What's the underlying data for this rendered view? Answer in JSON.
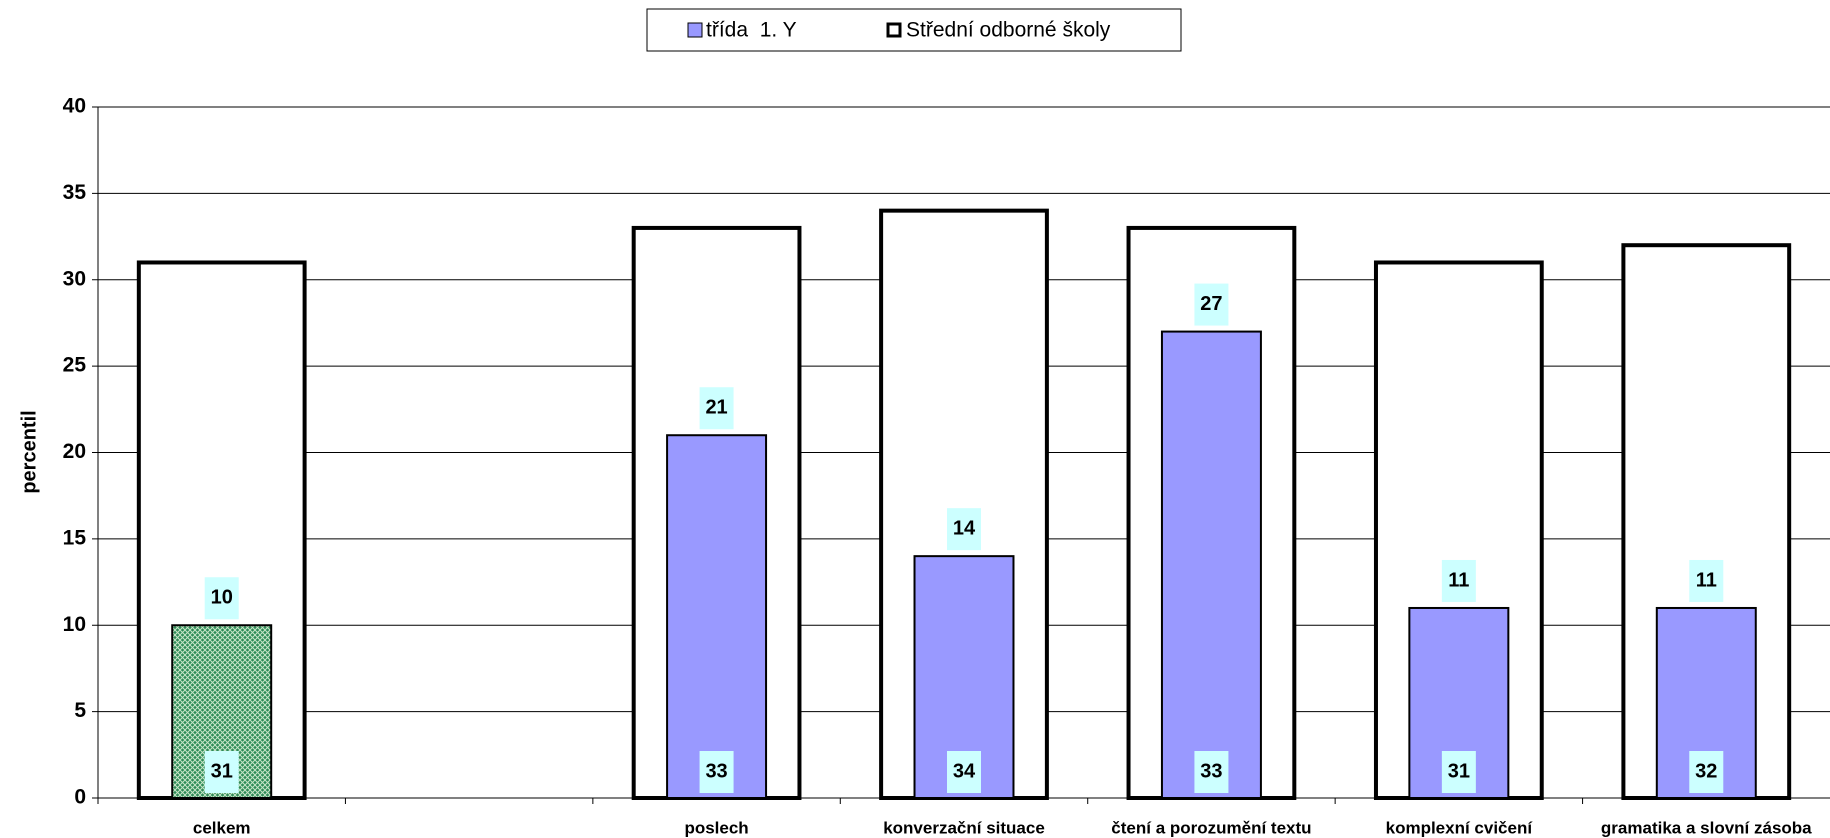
{
  "chart_data": {
    "type": "bar",
    "y_label": "percentil",
    "categories": [
      "celkem",
      null,
      "poslech",
      "konverzační situace",
      "čtení a porozumění textu",
      "komplexní cvičení",
      "gramatika a slovní zásoba"
    ],
    "series": [
      {
        "name": "třída  1. Y",
        "color": "#9999ff",
        "colors": [
          "#2e8b57",
          null,
          "#9999ff",
          "#9999ff",
          "#9999ff",
          "#9999ff",
          "#9999ff"
        ],
        "values": [
          10,
          null,
          21,
          14,
          27,
          11,
          11
        ]
      },
      {
        "name": "Střední odborné školy",
        "color": "#ffffff",
        "values": [
          31,
          null,
          33,
          34,
          33,
          31,
          32
        ]
      }
    ],
    "ylim": [
      0,
      40
    ],
    "yticks": [
      0,
      5,
      10,
      15,
      20,
      25,
      30,
      35,
      40
    ],
    "grid": true,
    "legend": "top"
  }
}
